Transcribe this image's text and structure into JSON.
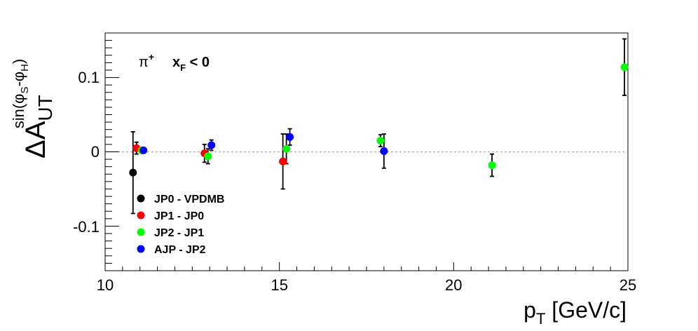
{
  "chart_data": {
    "type": "scatter",
    "title": "",
    "xlabel": {
      "main": "p",
      "sub": "T",
      "rest": " [GeV/c]"
    },
    "ylabel": {
      "delta": "ΔA",
      "sub": "UT",
      "sup": "sin(φ",
      "sup_s": "S",
      "sup_mid": "-φ",
      "sup_h": "H",
      "sup_end": ")"
    },
    "xlim": [
      10,
      25
    ],
    "ylim": [
      -0.16,
      0.16
    ],
    "x_ticks": [
      10,
      15,
      20,
      25
    ],
    "x_tick_labels": [
      "10",
      "15",
      "20",
      "25"
    ],
    "y_ticks": [
      -0.1,
      0,
      0.1
    ],
    "y_tick_labels": [
      "-0.1",
      "0",
      "0.1"
    ],
    "reference_line": 0,
    "grid": false,
    "annotation": {
      "particle": "π",
      "charge": "+",
      "cut_x": "x",
      "cut_sub": "F",
      "cut_rest": " < 0"
    },
    "legend_position": "bottom-left",
    "series": [
      {
        "name": "JP0 - VPDMB",
        "color": "#000000",
        "points": [
          {
            "x": 10.8,
            "y": -0.028,
            "err": 0.055
          }
        ]
      },
      {
        "name": "JP1 - JP0",
        "color": "#ff0000",
        "points": [
          {
            "x": 10.9,
            "y": 0.005,
            "err": 0.008
          },
          {
            "x": 12.85,
            "y": -0.002,
            "err": 0.012
          },
          {
            "x": 15.1,
            "y": -0.013,
            "err": 0.037
          }
        ]
      },
      {
        "name": "JP2 - JP1",
        "color": "#00ff00",
        "points": [
          {
            "x": 11.05,
            "y": 0.002,
            "err": 0.003
          },
          {
            "x": 12.95,
            "y": -0.006,
            "err": 0.01
          },
          {
            "x": 15.2,
            "y": 0.004,
            "err": 0.02
          },
          {
            "x": 17.9,
            "y": 0.015,
            "err": 0.008
          },
          {
            "x": 21.1,
            "y": -0.018,
            "err": 0.015
          },
          {
            "x": 24.9,
            "y": 0.114,
            "err": 0.038
          }
        ]
      },
      {
        "name": "AJP - JP2",
        "color": "#0000ff",
        "points": [
          {
            "x": 11.1,
            "y": 0.002,
            "err": 0.003
          },
          {
            "x": 13.05,
            "y": 0.009,
            "err": 0.007
          },
          {
            "x": 15.3,
            "y": 0.02,
            "err": 0.011
          },
          {
            "x": 18.0,
            "y": 0.001,
            "err": 0.023
          }
        ]
      }
    ]
  }
}
